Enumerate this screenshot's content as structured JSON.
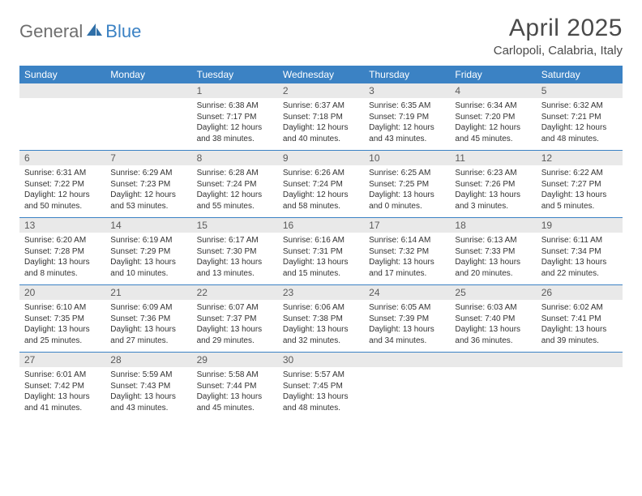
{
  "logo": {
    "general": "General",
    "blue": "Blue"
  },
  "title": "April 2025",
  "location": "Carlopoli, Calabria, Italy",
  "colors": {
    "accent": "#3b82c4",
    "header_bg": "#3b82c4",
    "daynum_bg": "#e9e9e9",
    "text": "#333333",
    "logo_gray": "#6e6e6e"
  },
  "weekdays": [
    "Sunday",
    "Monday",
    "Tuesday",
    "Wednesday",
    "Thursday",
    "Friday",
    "Saturday"
  ],
  "weeks": [
    [
      {
        "n": "",
        "sunrise": "",
        "sunset": "",
        "daylight": ""
      },
      {
        "n": "",
        "sunrise": "",
        "sunset": "",
        "daylight": ""
      },
      {
        "n": "1",
        "sunrise": "Sunrise: 6:38 AM",
        "sunset": "Sunset: 7:17 PM",
        "daylight": "Daylight: 12 hours and 38 minutes."
      },
      {
        "n": "2",
        "sunrise": "Sunrise: 6:37 AM",
        "sunset": "Sunset: 7:18 PM",
        "daylight": "Daylight: 12 hours and 40 minutes."
      },
      {
        "n": "3",
        "sunrise": "Sunrise: 6:35 AM",
        "sunset": "Sunset: 7:19 PM",
        "daylight": "Daylight: 12 hours and 43 minutes."
      },
      {
        "n": "4",
        "sunrise": "Sunrise: 6:34 AM",
        "sunset": "Sunset: 7:20 PM",
        "daylight": "Daylight: 12 hours and 45 minutes."
      },
      {
        "n": "5",
        "sunrise": "Sunrise: 6:32 AM",
        "sunset": "Sunset: 7:21 PM",
        "daylight": "Daylight: 12 hours and 48 minutes."
      }
    ],
    [
      {
        "n": "6",
        "sunrise": "Sunrise: 6:31 AM",
        "sunset": "Sunset: 7:22 PM",
        "daylight": "Daylight: 12 hours and 50 minutes."
      },
      {
        "n": "7",
        "sunrise": "Sunrise: 6:29 AM",
        "sunset": "Sunset: 7:23 PM",
        "daylight": "Daylight: 12 hours and 53 minutes."
      },
      {
        "n": "8",
        "sunrise": "Sunrise: 6:28 AM",
        "sunset": "Sunset: 7:24 PM",
        "daylight": "Daylight: 12 hours and 55 minutes."
      },
      {
        "n": "9",
        "sunrise": "Sunrise: 6:26 AM",
        "sunset": "Sunset: 7:24 PM",
        "daylight": "Daylight: 12 hours and 58 minutes."
      },
      {
        "n": "10",
        "sunrise": "Sunrise: 6:25 AM",
        "sunset": "Sunset: 7:25 PM",
        "daylight": "Daylight: 13 hours and 0 minutes."
      },
      {
        "n": "11",
        "sunrise": "Sunrise: 6:23 AM",
        "sunset": "Sunset: 7:26 PM",
        "daylight": "Daylight: 13 hours and 3 minutes."
      },
      {
        "n": "12",
        "sunrise": "Sunrise: 6:22 AM",
        "sunset": "Sunset: 7:27 PM",
        "daylight": "Daylight: 13 hours and 5 minutes."
      }
    ],
    [
      {
        "n": "13",
        "sunrise": "Sunrise: 6:20 AM",
        "sunset": "Sunset: 7:28 PM",
        "daylight": "Daylight: 13 hours and 8 minutes."
      },
      {
        "n": "14",
        "sunrise": "Sunrise: 6:19 AM",
        "sunset": "Sunset: 7:29 PM",
        "daylight": "Daylight: 13 hours and 10 minutes."
      },
      {
        "n": "15",
        "sunrise": "Sunrise: 6:17 AM",
        "sunset": "Sunset: 7:30 PM",
        "daylight": "Daylight: 13 hours and 13 minutes."
      },
      {
        "n": "16",
        "sunrise": "Sunrise: 6:16 AM",
        "sunset": "Sunset: 7:31 PM",
        "daylight": "Daylight: 13 hours and 15 minutes."
      },
      {
        "n": "17",
        "sunrise": "Sunrise: 6:14 AM",
        "sunset": "Sunset: 7:32 PM",
        "daylight": "Daylight: 13 hours and 17 minutes."
      },
      {
        "n": "18",
        "sunrise": "Sunrise: 6:13 AM",
        "sunset": "Sunset: 7:33 PM",
        "daylight": "Daylight: 13 hours and 20 minutes."
      },
      {
        "n": "19",
        "sunrise": "Sunrise: 6:11 AM",
        "sunset": "Sunset: 7:34 PM",
        "daylight": "Daylight: 13 hours and 22 minutes."
      }
    ],
    [
      {
        "n": "20",
        "sunrise": "Sunrise: 6:10 AM",
        "sunset": "Sunset: 7:35 PM",
        "daylight": "Daylight: 13 hours and 25 minutes."
      },
      {
        "n": "21",
        "sunrise": "Sunrise: 6:09 AM",
        "sunset": "Sunset: 7:36 PM",
        "daylight": "Daylight: 13 hours and 27 minutes."
      },
      {
        "n": "22",
        "sunrise": "Sunrise: 6:07 AM",
        "sunset": "Sunset: 7:37 PM",
        "daylight": "Daylight: 13 hours and 29 minutes."
      },
      {
        "n": "23",
        "sunrise": "Sunrise: 6:06 AM",
        "sunset": "Sunset: 7:38 PM",
        "daylight": "Daylight: 13 hours and 32 minutes."
      },
      {
        "n": "24",
        "sunrise": "Sunrise: 6:05 AM",
        "sunset": "Sunset: 7:39 PM",
        "daylight": "Daylight: 13 hours and 34 minutes."
      },
      {
        "n": "25",
        "sunrise": "Sunrise: 6:03 AM",
        "sunset": "Sunset: 7:40 PM",
        "daylight": "Daylight: 13 hours and 36 minutes."
      },
      {
        "n": "26",
        "sunrise": "Sunrise: 6:02 AM",
        "sunset": "Sunset: 7:41 PM",
        "daylight": "Daylight: 13 hours and 39 minutes."
      }
    ],
    [
      {
        "n": "27",
        "sunrise": "Sunrise: 6:01 AM",
        "sunset": "Sunset: 7:42 PM",
        "daylight": "Daylight: 13 hours and 41 minutes."
      },
      {
        "n": "28",
        "sunrise": "Sunrise: 5:59 AM",
        "sunset": "Sunset: 7:43 PM",
        "daylight": "Daylight: 13 hours and 43 minutes."
      },
      {
        "n": "29",
        "sunrise": "Sunrise: 5:58 AM",
        "sunset": "Sunset: 7:44 PM",
        "daylight": "Daylight: 13 hours and 45 minutes."
      },
      {
        "n": "30",
        "sunrise": "Sunrise: 5:57 AM",
        "sunset": "Sunset: 7:45 PM",
        "daylight": "Daylight: 13 hours and 48 minutes."
      },
      {
        "n": "",
        "sunrise": "",
        "sunset": "",
        "daylight": ""
      },
      {
        "n": "",
        "sunrise": "",
        "sunset": "",
        "daylight": ""
      },
      {
        "n": "",
        "sunrise": "",
        "sunset": "",
        "daylight": ""
      }
    ]
  ]
}
